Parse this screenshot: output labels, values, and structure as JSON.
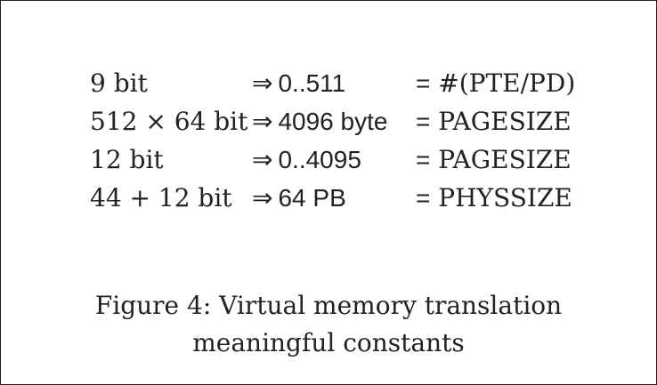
{
  "rows": [
    {
      "size": "9 bit",
      "arrow": "⇒",
      "value": "0..511",
      "eq": "=",
      "meaning": "#(PTE/PD)"
    },
    {
      "size": "512 × 64 bit",
      "arrow": "⇒",
      "value": "4096 byte",
      "eq": "=",
      "meaning": "PAGESIZE"
    },
    {
      "size": "12 bit",
      "arrow": "⇒",
      "value": "0..4095",
      "eq": "=",
      "meaning": "PAGESIZE"
    },
    {
      "size": "44 + 12 bit",
      "arrow": "⇒",
      "value": "64 PB",
      "eq": "=",
      "meaning": "PHYSSIZE"
    }
  ],
  "caption": {
    "line1": "Figure 4: Virtual memory translation",
    "line2": "meaningful constants"
  }
}
